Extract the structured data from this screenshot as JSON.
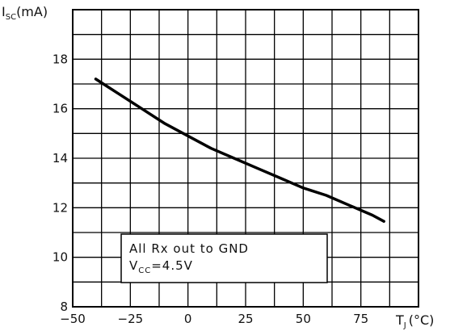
{
  "chart_data": {
    "type": "line",
    "title": "",
    "xlabel": {
      "main": "T",
      "sub": "J",
      "unit": "(°C)"
    },
    "ylabel": {
      "main": "I",
      "sub": "SC",
      "unit": "(mA)"
    },
    "xlim": [
      -50,
      100
    ],
    "ylim": [
      8,
      20
    ],
    "x_grid_step": 12.5,
    "y_grid_step": 1,
    "grid": true,
    "x_ticks": [
      -50,
      -25,
      0,
      25,
      50,
      75
    ],
    "y_ticks": [
      8,
      10,
      12,
      14,
      16,
      18
    ],
    "annotation": {
      "line1": "All Rx out to GND",
      "line2_main": "V",
      "line2_sub": "CC",
      "line2_rest": "=4.5V"
    },
    "series": [
      {
        "x": [
          -40,
          -30,
          -20,
          -10,
          0,
          10,
          20,
          30,
          40,
          50,
          60,
          70,
          80,
          85
        ],
        "y": [
          17.2,
          16.6,
          16.0,
          15.4,
          14.9,
          14.4,
          14.0,
          13.6,
          13.2,
          12.8,
          12.5,
          12.1,
          11.7,
          11.45
        ]
      }
    ]
  }
}
